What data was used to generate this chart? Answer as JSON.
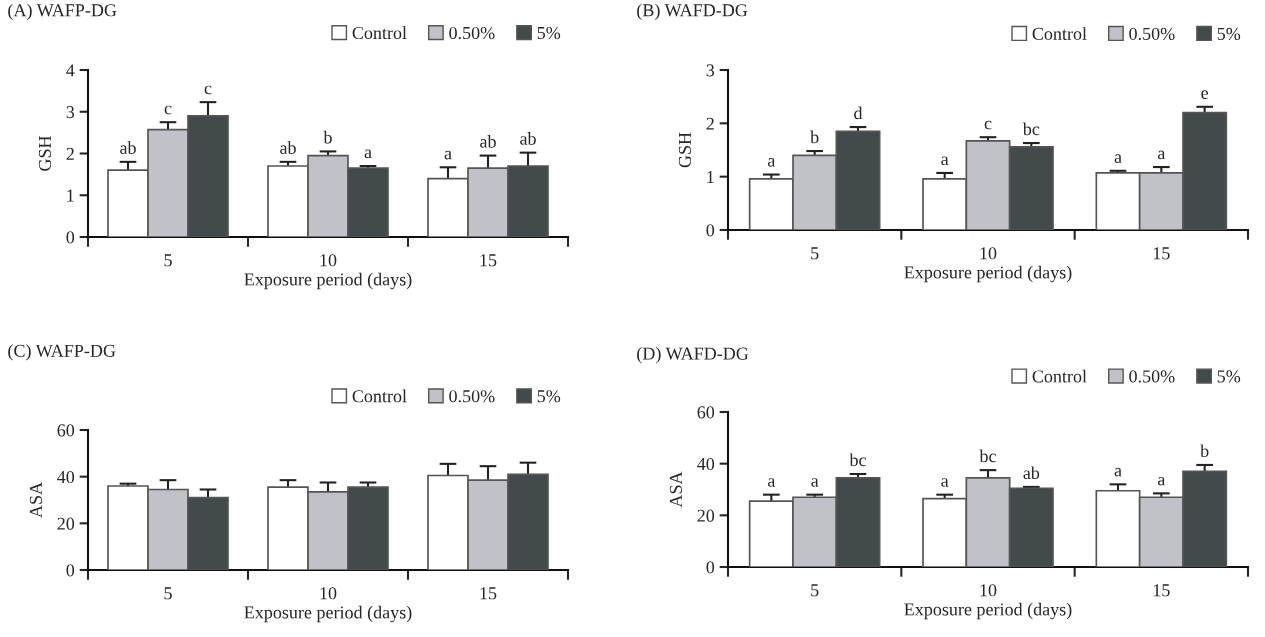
{
  "chart_data": [
    {
      "type": "bar",
      "title": "(A) WAFP-DG",
      "xlabel": "Exposure period (days)",
      "ylabel": "GSH",
      "categories": [
        "5",
        "10",
        "15"
      ],
      "ylim": [
        0,
        4
      ],
      "yticks": [
        0,
        1,
        2,
        3,
        4
      ],
      "legend": "top right",
      "series": [
        {
          "name": "Control",
          "color": "#ffffff",
          "values": [
            1.6,
            1.7,
            1.4
          ],
          "errors": [
            0.2,
            0.1,
            0.27
          ]
        },
        {
          "name": "0.50%",
          "color": "#c0c2c8",
          "values": [
            2.57,
            1.95,
            1.65
          ],
          "errors": [
            0.18,
            0.1,
            0.3
          ]
        },
        {
          "name": "5%",
          "color": "#434a4b",
          "values": [
            2.9,
            1.65,
            1.7
          ],
          "errors": [
            0.33,
            0.05,
            0.32
          ]
        }
      ],
      "annotations": [
        "ab",
        "c",
        "c",
        "ab",
        "b",
        "a",
        "a",
        "ab",
        "ab"
      ]
    },
    {
      "type": "bar",
      "title": "(B) WAFD-DG",
      "xlabel": "Exposure period (days)",
      "ylabel": "GSH",
      "categories": [
        "5",
        "10",
        "15"
      ],
      "ylim": [
        0,
        3
      ],
      "yticks": [
        0,
        1,
        2,
        3
      ],
      "legend": "top right",
      "series": [
        {
          "name": "Control",
          "color": "#ffffff",
          "values": [
            0.96,
            0.96,
            1.07
          ],
          "errors": [
            0.08,
            0.11,
            0.04
          ]
        },
        {
          "name": "0.50%",
          "color": "#c0c2c8",
          "values": [
            1.4,
            1.67,
            1.07
          ],
          "errors": [
            0.08,
            0.07,
            0.11
          ]
        },
        {
          "name": "5%",
          "color": "#434a4b",
          "values": [
            1.85,
            1.56,
            2.2
          ],
          "errors": [
            0.08,
            0.07,
            0.11
          ]
        }
      ],
      "annotations": [
        "a",
        "b",
        "d",
        "a",
        "c",
        "bc",
        "a",
        "a",
        "e"
      ]
    },
    {
      "type": "bar",
      "title": "(C) WAFP-DG",
      "xlabel": "Exposure period (days)",
      "ylabel": "ASA",
      "categories": [
        "5",
        "10",
        "15"
      ],
      "ylim": [
        0,
        60
      ],
      "yticks": [
        0,
        20,
        40,
        60
      ],
      "legend": "top right",
      "series": [
        {
          "name": "Control",
          "color": "#ffffff",
          "values": [
            36,
            35.5,
            40.5
          ],
          "errors": [
            1,
            3,
            5
          ]
        },
        {
          "name": "0.50%",
          "color": "#c0c2c8",
          "values": [
            34.5,
            33.5,
            38.5
          ],
          "errors": [
            4,
            4,
            6
          ]
        },
        {
          "name": "5%",
          "color": "#434a4b",
          "values": [
            31,
            35.5,
            41
          ],
          "errors": [
            3.5,
            2,
            5
          ]
        }
      ]
    },
    {
      "type": "bar",
      "title": "(D) WAFD-DG",
      "xlabel": "Exposure period (days)",
      "ylabel": "ASA",
      "categories": [
        "5",
        "10",
        "15"
      ],
      "ylim": [
        0,
        60
      ],
      "yticks": [
        0,
        20,
        40,
        60
      ],
      "legend": "top right",
      "series": [
        {
          "name": "Control",
          "color": "#ffffff",
          "values": [
            25.5,
            26.5,
            29.5
          ],
          "errors": [
            2.5,
            1.5,
            2.5
          ]
        },
        {
          "name": "0.50%",
          "color": "#c0c2c8",
          "values": [
            27,
            34.5,
            27
          ],
          "errors": [
            1,
            3,
            1.5
          ]
        },
        {
          "name": "5%",
          "color": "#434a4b",
          "values": [
            34.5,
            30.5,
            37
          ],
          "errors": [
            1.5,
            0.5,
            2.5
          ]
        }
      ],
      "annotations": [
        "a",
        "a",
        "bc",
        "a",
        "bc",
        "ab",
        "a",
        "a",
        "b"
      ]
    }
  ]
}
